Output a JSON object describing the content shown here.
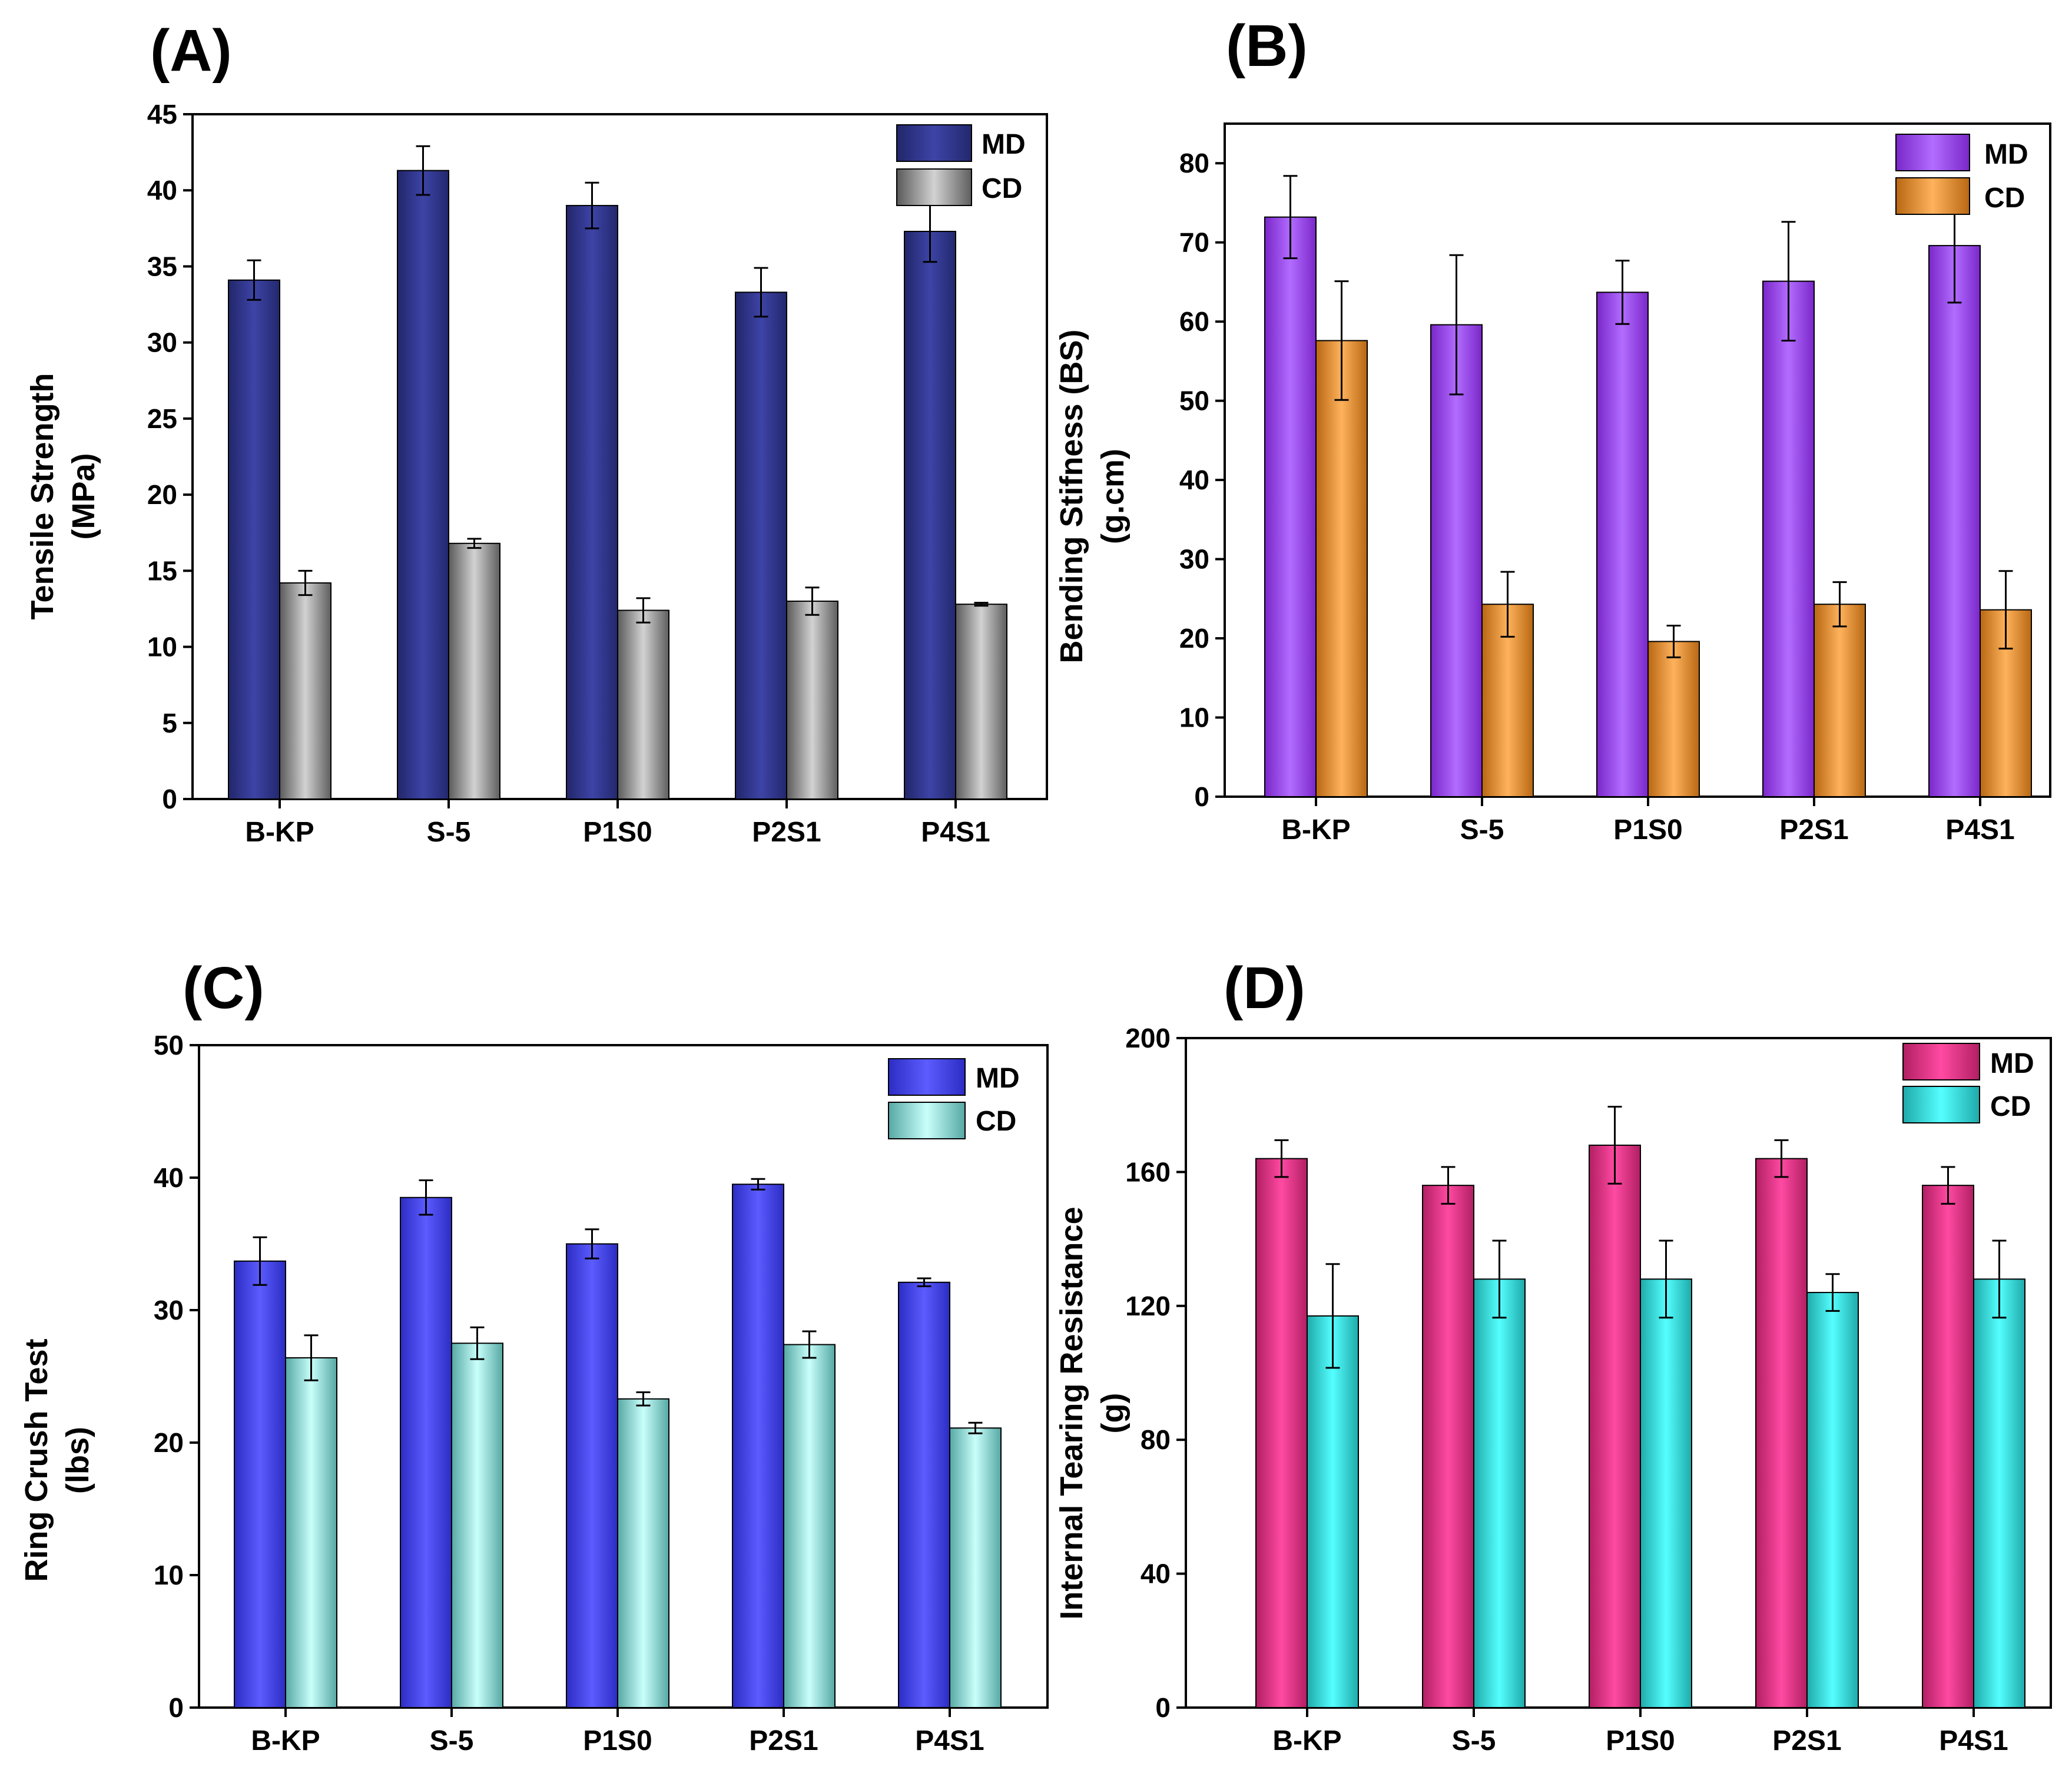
{
  "colors": {
    "A": {
      "md": [
        "#22266a",
        "#3d44a6",
        "#23286d"
      ],
      "cd": [
        "#5a5a5a",
        "#d2d2d2",
        "#5e5e5e"
      ]
    },
    "B": {
      "md": [
        "#7a27c9",
        "#b26cff",
        "#7a27c9"
      ],
      "cd": [
        "#b86712",
        "#ffb25c",
        "#b86712"
      ]
    },
    "C": {
      "md": [
        "#2c2cc4",
        "#5c5cff",
        "#2c2cc4"
      ],
      "cd": [
        "#56a8a4",
        "#c9fffb",
        "#56a8a4"
      ]
    },
    "D": {
      "md": [
        "#b11f63",
        "#ff4aa2",
        "#b11f63"
      ],
      "cd": [
        "#1fa9a9",
        "#55ffff",
        "#1fa9a9"
      ]
    }
  },
  "chart_data": [
    {
      "id": "A",
      "panel_label": "(A)",
      "type": "bar",
      "ylabel_lines": [
        "Tensile Strength",
        "(MPa)"
      ],
      "categories": [
        "B-KP",
        "S-5",
        "P1S0",
        "P2S1",
        "P4S1"
      ],
      "ylim": [
        0,
        45
      ],
      "yticks": [
        "0",
        "5",
        "10",
        "15",
        "20",
        "25",
        "30",
        "35",
        "40",
        "45"
      ],
      "ytick_values": [
        0,
        5,
        10,
        15,
        20,
        25,
        30,
        35,
        40,
        45
      ],
      "legend_position": "top-right",
      "series": [
        {
          "name": "MD",
          "values": [
            34.1,
            41.3,
            39.0,
            33.3,
            37.3
          ],
          "errors": [
            1.3,
            1.6,
            1.5,
            1.6,
            2.0
          ]
        },
        {
          "name": "CD",
          "values": [
            14.2,
            16.8,
            12.4,
            13.0,
            12.8
          ],
          "errors": [
            0.8,
            0.3,
            0.8,
            0.9,
            0.1
          ]
        }
      ]
    },
    {
      "id": "B",
      "panel_label": "(B)",
      "type": "bar",
      "ylabel_lines": [
        "Bending Stifness (BS)",
        "(g.cm)"
      ],
      "categories": [
        "B-KP",
        "S-5",
        "P1S0",
        "P2S1",
        "P4S1"
      ],
      "ylim": [
        0,
        85
      ],
      "yticks": [
        "0",
        "10",
        "20",
        "30",
        "40",
        "50",
        "60",
        "70",
        "80"
      ],
      "ytick_values": [
        0,
        10,
        20,
        30,
        40,
        50,
        60,
        70,
        80
      ],
      "legend_position": "top-right",
      "series": [
        {
          "name": "MD",
          "values": [
            73.2,
            59.6,
            63.7,
            65.1,
            69.6
          ],
          "errors": [
            5.2,
            8.8,
            4.0,
            7.5,
            7.2
          ]
        },
        {
          "name": "CD",
          "values": [
            57.6,
            24.3,
            19.6,
            24.3,
            23.6
          ],
          "errors": [
            7.5,
            4.1,
            2.0,
            2.8,
            4.9
          ]
        }
      ]
    },
    {
      "id": "C",
      "panel_label": "(C)",
      "type": "bar",
      "ylabel_lines": [
        "Ring Crush Test",
        "(lbs)"
      ],
      "categories": [
        "B-KP",
        "S-5",
        "P1S0",
        "P2S1",
        "P4S1"
      ],
      "ylim": [
        0,
        50
      ],
      "yticks": [
        "0",
        "10",
        "20",
        "30",
        "40",
        "50"
      ],
      "ytick_values": [
        0,
        10,
        20,
        30,
        40,
        50
      ],
      "legend_position": "top-right",
      "series": [
        {
          "name": "MD",
          "values": [
            33.7,
            38.5,
            35.0,
            39.5,
            32.1
          ],
          "errors": [
            1.8,
            1.3,
            1.1,
            0.4,
            0.3
          ]
        },
        {
          "name": "CD",
          "values": [
            26.4,
            27.5,
            23.3,
            27.4,
            21.1
          ],
          "errors": [
            1.7,
            1.2,
            0.5,
            1.0,
            0.4
          ]
        }
      ]
    },
    {
      "id": "D",
      "panel_label": "(D)",
      "type": "bar",
      "ylabel_lines": [
        "Internal Tearing Resistance",
        "(g)"
      ],
      "categories": [
        "B-KP",
        "S-5",
        "P1S0",
        "P2S1",
        "P4S1"
      ],
      "ylim": [
        0,
        200
      ],
      "yticks": [
        "0",
        "40",
        "80",
        "120",
        "160",
        "200"
      ],
      "ytick_values": [
        0,
        40,
        80,
        120,
        160,
        200
      ],
      "legend_position": "top-right",
      "series": [
        {
          "name": "MD",
          "values": [
            164,
            156,
            168,
            164,
            156
          ],
          "errors": [
            5.5,
            5.5,
            11.5,
            5.5,
            5.5
          ]
        },
        {
          "name": "CD",
          "values": [
            117,
            128,
            128,
            124,
            128
          ],
          "errors": [
            15.5,
            11.5,
            11.5,
            5.5,
            11.5
          ]
        }
      ]
    }
  ]
}
